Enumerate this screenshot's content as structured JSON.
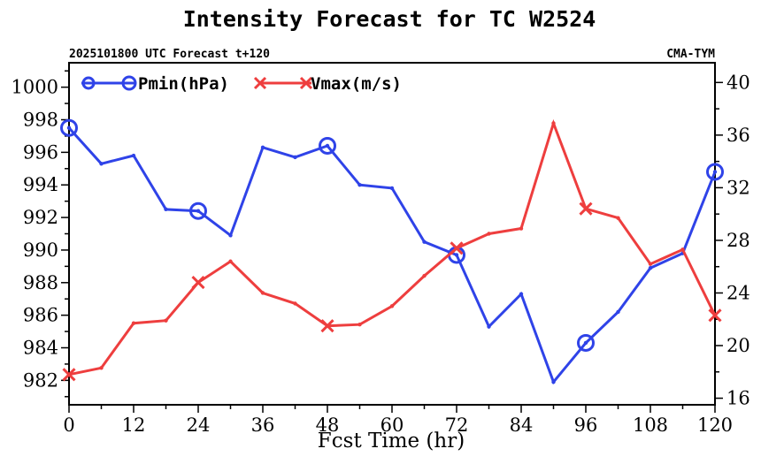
{
  "chart_data": {
    "type": "line",
    "title": "Intensity Forecast for TC W2524",
    "subtitle_left": "2025101800 UTC Forecast t+120",
    "subtitle_right": "CMA-TYM",
    "xlabel": "Fcst Time (hr)",
    "ylabel": "",
    "y2label": "",
    "xlim": [
      0,
      120
    ],
    "ylim": [
      980.5,
      1001.5
    ],
    "y2lim": [
      15.5,
      41.5
    ],
    "x_ticks": [
      0,
      12,
      24,
      36,
      48,
      60,
      72,
      84,
      96,
      108,
      120
    ],
    "y_ticks": [
      982,
      984,
      986,
      988,
      990,
      992,
      994,
      996,
      998,
      1000
    ],
    "y2_ticks": [
      16,
      20,
      24,
      28,
      32,
      36,
      40
    ],
    "x": [
      0,
      6,
      12,
      18,
      24,
      30,
      36,
      42,
      48,
      54,
      60,
      66,
      72,
      78,
      84,
      90,
      96,
      102,
      108,
      114,
      120
    ],
    "legend_position": "top-left",
    "grid": false,
    "series": [
      {
        "name": "Pmin(hPa)",
        "axis": "left",
        "color": "#2f43e8",
        "marker": "circle",
        "marker_every": 24,
        "values": [
          997.5,
          995.3,
          995.8,
          992.5,
          992.4,
          990.9,
          996.3,
          995.7,
          996.4,
          994.0,
          993.8,
          990.5,
          989.7,
          985.3,
          987.3,
          981.9,
          984.3,
          986.2,
          988.9,
          989.8,
          994.8
        ]
      },
      {
        "name": "Vmax(m/s)",
        "axis": "right",
        "color": "#ee3e3e",
        "marker": "x",
        "marker_every": 24,
        "values": [
          17.8,
          18.3,
          21.7,
          21.9,
          24.8,
          26.4,
          24.0,
          23.2,
          21.5,
          21.6,
          23.0,
          25.3,
          27.4,
          28.5,
          28.9,
          36.9,
          30.4,
          29.7,
          26.2,
          27.3,
          22.3
        ]
      }
    ]
  }
}
